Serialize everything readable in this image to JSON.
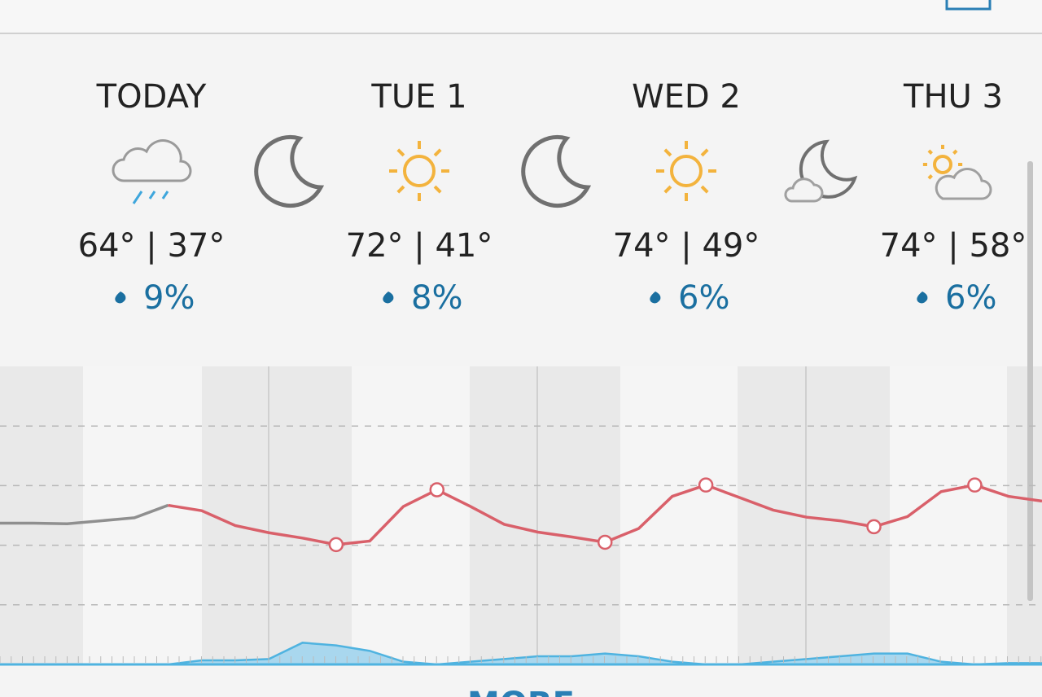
{
  "days": [
    {
      "label": "TODAY",
      "high": "64°",
      "low": "37°",
      "precip": "9%"
    },
    {
      "label": "TUE 1",
      "high": "72°",
      "low": "41°",
      "precip": "8%"
    },
    {
      "label": "WED 2",
      "high": "74°",
      "low": "49°",
      "precip": "6%"
    },
    {
      "label": "THU 3",
      "high": "74°",
      "low": "58°",
      "precip": "6%"
    }
  ],
  "separator": "|",
  "more": "MORE",
  "graph": {
    "past_temperature": [
      63.7,
      63.7,
      63.6,
      64.1,
      64.6,
      66.7,
      null,
      null,
      null,
      null,
      null,
      null,
      null,
      null,
      null,
      null,
      null,
      null,
      null,
      null,
      null,
      null,
      null,
      null,
      null,
      null,
      null,
      null,
      null,
      null,
      null,
      null
    ],
    "temperature": [
      null,
      null,
      null,
      null,
      null,
      66.7,
      65.8,
      63.3,
      62.1,
      61.2,
      60.1,
      60.7,
      66.5,
      69.3,
      66.5,
      63.5,
      62.2,
      61.4,
      60.5,
      62.8,
      68.2,
      70.1,
      68.0,
      65.9,
      64.7,
      64.1,
      63.1,
      64.8,
      69.0,
      70.1,
      68.2,
      67.4
    ],
    "precipitation": [
      0,
      0,
      0,
      0,
      0,
      0,
      1.5,
      1.5,
      2,
      8,
      7,
      5,
      1,
      0,
      1,
      2,
      3,
      3,
      4,
      3,
      1,
      0,
      0,
      1,
      2,
      3,
      4,
      4,
      1,
      0,
      0.5,
      0.5
    ],
    "ylim": [
      40,
      90
    ],
    "yticks": [
      50,
      60,
      70,
      80
    ],
    "precip_ylim": [
      0,
      30
    ]
  }
}
